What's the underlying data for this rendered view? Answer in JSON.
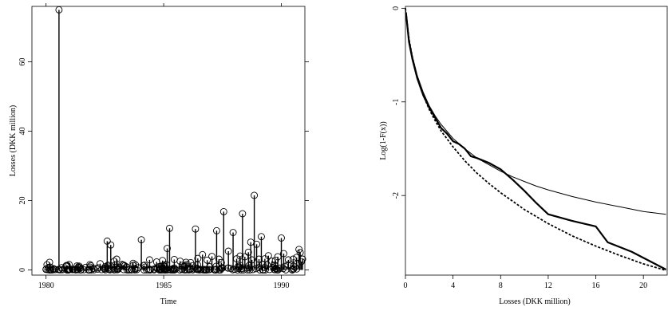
{
  "chart_data": [
    {
      "type": "scatter",
      "subtype": "needle",
      "title": "",
      "xlabel": "Time",
      "ylabel": "Losses (DKK million)",
      "xlim": [
        1979.4,
        1991.0
      ],
      "ylim": [
        -1.5,
        76
      ],
      "xticks": [
        1980,
        1985,
        1990
      ],
      "yticks": [
        0,
        20,
        40,
        60
      ],
      "grid": false,
      "marker": "open-circle",
      "series": [
        {
          "x": [
            1980.15,
            1980.55,
            1980.9,
            1981.4,
            1981.9,
            1982.3,
            1982.6,
            1982.75,
            1982.9,
            1983.0,
            1983.3,
            1983.7,
            1984.05,
            1984.4,
            1984.7,
            1984.95,
            1985.15,
            1985.25,
            1985.45,
            1985.7,
            1985.95,
            1986.15,
            1986.35,
            1986.45,
            1986.65,
            1986.85,
            1987.05,
            1987.25,
            1987.35,
            1987.45,
            1987.55,
            1987.75,
            1987.95,
            1988.1,
            1988.25,
            1988.35,
            1988.45,
            1988.6,
            1988.7,
            1988.75,
            1988.85,
            1988.95,
            1989.05,
            1989.15,
            1989.3,
            1989.45,
            1989.6,
            1989.75,
            1989.85,
            1990.0,
            1990.1,
            1990.3,
            1990.5,
            1990.65,
            1990.75,
            1990.8,
            1990.85,
            1990.9
          ],
          "y": [
            2.2,
            75,
            1.3,
            1.1,
            1.2,
            1.8,
            8.3,
            7.2,
            2.5,
            3.1,
            1.4,
            1.9,
            8.7,
            2.9,
            2.3,
            2.7,
            6.2,
            12.0,
            3.0,
            2.5,
            2.2,
            2.1,
            11.8,
            3.3,
            4.4,
            2.8,
            3.9,
            11.3,
            3.1,
            2.1,
            16.8,
            5.4,
            10.8,
            3.2,
            4.0,
            16.2,
            3.8,
            5.1,
            8.0,
            2.9,
            21.5,
            7.4,
            3.1,
            9.6,
            3.2,
            4.1,
            2.5,
            2.8,
            3.8,
            9.2,
            4.7,
            2.9,
            3.1,
            3.6,
            5.9,
            5.0,
            2.4,
            3.1
          ]
        }
      ]
    },
    {
      "type": "line",
      "title": "",
      "xlabel": "Losses (DKK million)",
      "ylabel": "Log(1-F(x))",
      "xlim": [
        0,
        22
      ],
      "ylim": [
        -2.85,
        0.02
      ],
      "xticks": [
        0,
        4,
        8,
        12,
        16,
        20
      ],
      "yticks": [
        0,
        -1,
        -2
      ],
      "grid": false,
      "series": [
        {
          "style": "thick-solid",
          "x": [
            0.05,
            0.3,
            0.6,
            1.0,
            1.5,
            2.0,
            2.5,
            3.0,
            3.5,
            4.0,
            4.5,
            5.0,
            5.5,
            6.0,
            7.0,
            8.0,
            9.0,
            10.0,
            11.0,
            12.0,
            14.0,
            16.0,
            17.0,
            19.0,
            21.9
          ],
          "y": [
            -0.05,
            -0.36,
            -0.55,
            -0.75,
            -0.93,
            -1.06,
            -1.17,
            -1.28,
            -1.34,
            -1.42,
            -1.45,
            -1.5,
            -1.58,
            -1.6,
            -1.65,
            -1.72,
            -1.83,
            -1.95,
            -2.08,
            -2.2,
            -2.27,
            -2.33,
            -2.5,
            -2.6,
            -2.79
          ]
        },
        {
          "style": "thin-solid",
          "x": [
            0,
            0.3,
            0.6,
            1.0,
            1.5,
            2.0,
            2.5,
            3.0,
            4.0,
            5.0,
            6.0,
            7.0,
            8.0,
            9.0,
            10.0,
            11.0,
            12.0,
            14.0,
            16.0,
            18.0,
            20.0,
            21.9
          ],
          "y": [
            0,
            -0.33,
            -0.52,
            -0.72,
            -0.9,
            -1.04,
            -1.15,
            -1.24,
            -1.39,
            -1.5,
            -1.6,
            -1.67,
            -1.74,
            -1.8,
            -1.85,
            -1.9,
            -1.94,
            -2.01,
            -2.07,
            -2.12,
            -2.17,
            -2.2
          ]
        },
        {
          "style": "dashed",
          "x": [
            0,
            0.3,
            0.6,
            1.0,
            1.5,
            2.0,
            2.5,
            3.0,
            4.0,
            5.0,
            6.0,
            7.0,
            8.0,
            9.0,
            10.0,
            12.0,
            14.0,
            16.0,
            18.0,
            20.0,
            21.9
          ],
          "y": [
            0,
            -0.33,
            -0.53,
            -0.74,
            -0.93,
            -1.08,
            -1.2,
            -1.31,
            -1.48,
            -1.63,
            -1.76,
            -1.87,
            -1.97,
            -2.06,
            -2.15,
            -2.3,
            -2.43,
            -2.54,
            -2.64,
            -2.73,
            -2.8
          ]
        }
      ]
    }
  ]
}
